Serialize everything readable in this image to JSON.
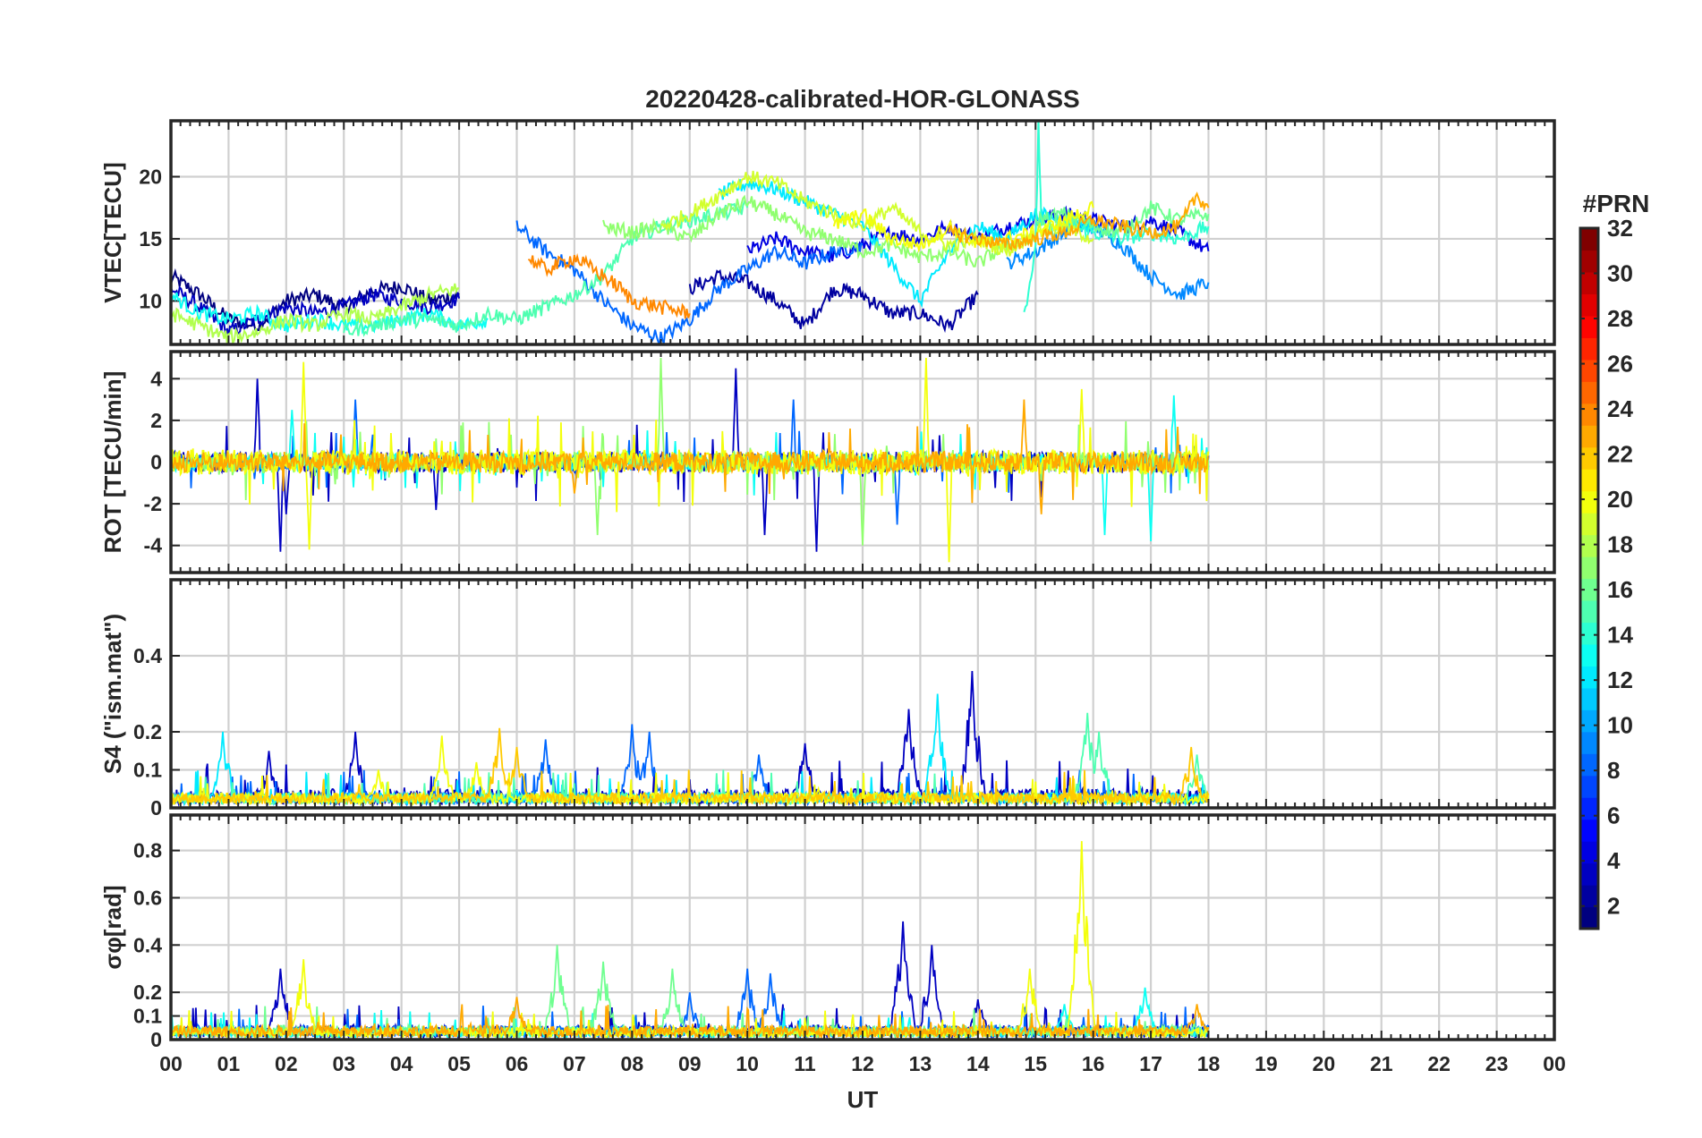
{
  "chart_data": {
    "type": "line",
    "title": "20220428-calibrated-HOR-GLONASS",
    "xlabel": "UT",
    "x_ticks": [
      "00",
      "01",
      "02",
      "03",
      "04",
      "05",
      "06",
      "07",
      "08",
      "09",
      "10",
      "11",
      "12",
      "13",
      "14",
      "15",
      "16",
      "17",
      "18",
      "19",
      "20",
      "21",
      "22",
      "23",
      "00"
    ],
    "xlim_hours": [
      0,
      24
    ],
    "grid": true,
    "panels": [
      {
        "id": "vtec",
        "ylabel": "VTEC[TECU]",
        "ylim": [
          6.5,
          24.5
        ],
        "yticks": [
          10,
          15,
          20
        ],
        "ytick_labels": [
          "10",
          "15",
          "20"
        ],
        "series": [
          {
            "prn": 1,
            "x": [
              0.0,
              0.5,
              1.0,
              1.5,
              2.0,
              2.5,
              3.0,
              3.5,
              4.0,
              4.5,
              5.0
            ],
            "y": [
              12.0,
              10.5,
              8.5,
              8.0,
              10.0,
              10.5,
              9.5,
              10.8,
              11.2,
              10.0,
              10.5
            ]
          },
          {
            "prn": 3,
            "x": [
              0.0,
              0.5,
              1.0,
              1.5,
              2.0,
              2.5,
              3.0,
              3.5,
              4.0,
              4.5,
              5.0
            ],
            "y": [
              11.0,
              9.5,
              7.5,
              8.5,
              9.5,
              9.0,
              9.5,
              10.5,
              10.0,
              9.5,
              10.2
            ]
          },
          {
            "prn": 2,
            "x": [
              9.0,
              9.5,
              10.0,
              10.5,
              11.0,
              11.5,
              12.0,
              12.5,
              13.0,
              13.5,
              14.0
            ],
            "y": [
              11.0,
              12.0,
              11.5,
              10.0,
              8.0,
              11.0,
              10.5,
              9.0,
              9.0,
              8.0,
              10.5
            ]
          },
          {
            "prn": 4,
            "x": [
              10.0,
              10.5,
              11.0,
              11.5,
              12.0,
              12.5,
              13.0,
              13.5,
              14.0,
              14.5,
              15.0,
              15.5,
              16.0,
              16.5,
              17.0,
              17.5,
              18.0
            ],
            "y": [
              14.0,
              15.0,
              14.0,
              13.5,
              14.5,
              15.5,
              15.0,
              16.0,
              15.0,
              16.0,
              16.5,
              17.0,
              16.5,
              16.0,
              16.5,
              15.5,
              14.0
            ]
          },
          {
            "prn": 8,
            "x": [
              6.0,
              6.5,
              7.0,
              7.5,
              8.0,
              8.5,
              9.0,
              9.5,
              10.0,
              10.5,
              11.0,
              11.5,
              12.0
            ],
            "y": [
              16.0,
              14.0,
              12.5,
              10.0,
              8.0,
              7.0,
              8.5,
              11.0,
              12.5,
              14.0,
              13.0,
              14.0,
              14.5
            ]
          },
          {
            "prn": 9,
            "x": [
              14.5,
              15.0,
              15.5,
              16.0,
              16.5,
              17.0,
              17.5,
              18.0
            ],
            "y": [
              13.0,
              14.0,
              15.5,
              16.0,
              14.5,
              12.0,
              10.5,
              11.5
            ]
          },
          {
            "prn": 12,
            "x": [
              9.5,
              10.0,
              10.5,
              11.0,
              11.5,
              12.0,
              12.5,
              13.0,
              13.5,
              14.0,
              14.5,
              15.0,
              15.5,
              16.0
            ],
            "y": [
              18.5,
              19.5,
              19.0,
              18.0,
              17.0,
              16.0,
              13.0,
              10.0,
              14.0,
              16.0,
              15.0,
              17.0,
              16.5,
              16.0
            ]
          },
          {
            "prn": 13,
            "x": [
              0.0,
              0.5,
              1.0,
              1.5,
              2.0,
              2.5,
              3.0,
              3.5,
              4.0,
              4.5,
              5.0,
              5.5
            ],
            "y": [
              10.5,
              9.0,
              8.5,
              9.0,
              8.0,
              8.5,
              8.0,
              8.0,
              8.5,
              9.0,
              8.0,
              8.5
            ]
          },
          {
            "prn": 14,
            "x": [
              14.8,
              15.0,
              15.05,
              15.1,
              15.2,
              15.5,
              16.0,
              16.5,
              17.0,
              17.5,
              18.0
            ],
            "y": [
              9.0,
              14.0,
              24.5,
              16.0,
              15.5,
              16.0,
              15.5,
              15.0,
              15.5,
              15.0,
              16.0
            ]
          },
          {
            "prn": 15,
            "x": [
              3.0,
              3.5,
              4.0,
              4.5,
              5.0,
              5.5,
              6.0,
              6.5,
              7.0,
              7.5,
              8.0,
              8.5,
              9.0,
              9.5,
              10.0
            ],
            "y": [
              7.5,
              8.0,
              8.5,
              8.5,
              8.0,
              9.0,
              8.5,
              9.5,
              10.5,
              12.0,
              15.0,
              16.0,
              16.5,
              17.0,
              17.5
            ]
          },
          {
            "prn": 16,
            "x": [
              15.0,
              15.5,
              16.0,
              16.5,
              17.0,
              17.5,
              18.0
            ],
            "y": [
              16.5,
              17.0,
              16.0,
              15.5,
              17.5,
              16.5,
              17.0
            ]
          },
          {
            "prn": 17,
            "x": [
              7.5,
              8.0,
              8.5,
              9.0,
              9.5,
              10.0,
              10.5,
              11.0,
              11.5,
              12.0,
              12.5,
              13.0,
              13.5,
              14.0,
              14.5,
              15.0
            ],
            "y": [
              16.0,
              15.5,
              16.0,
              15.0,
              17.0,
              18.0,
              17.0,
              15.5,
              15.0,
              14.0,
              14.5,
              13.5,
              14.0,
              13.0,
              14.5,
              15.0
            ]
          },
          {
            "prn": 18,
            "x": [
              0.0,
              0.5,
              1.0,
              1.5,
              2.0,
              2.5,
              3.0,
              3.5,
              4.0,
              4.5,
              5.0
            ],
            "y": [
              9.0,
              8.0,
              7.0,
              7.5,
              8.5,
              8.0,
              9.0,
              8.5,
              9.5,
              10.5,
              11.0
            ]
          },
          {
            "prn": 19,
            "x": [
              8.5,
              9.0,
              9.5,
              10.0,
              10.5,
              11.0,
              11.5,
              12.0,
              12.5,
              13.0,
              13.5,
              14.0,
              14.5,
              15.0,
              15.5,
              16.0
            ],
            "y": [
              16.0,
              17.0,
              18.5,
              20.0,
              19.5,
              18.0,
              17.0,
              16.0,
              17.5,
              15.5,
              14.5,
              15.0,
              14.0,
              15.5,
              16.0,
              15.0
            ]
          },
          {
            "prn": 20,
            "x": [
              11.5,
              12.0,
              12.5,
              13.0,
              13.5,
              14.0,
              14.5,
              15.0,
              15.5,
              16.0
            ],
            "y": [
              16.0,
              17.0,
              15.0,
              14.5,
              16.0,
              14.5,
              15.0,
              15.5,
              16.5,
              17.5
            ]
          },
          {
            "prn": 23,
            "x": [
              13.5,
              14.0,
              14.5,
              15.0,
              15.5,
              16.0,
              16.5,
              17.0,
              17.5,
              17.8,
              18.0
            ],
            "y": [
              15.5,
              15.0,
              14.5,
              15.0,
              15.5,
              16.5,
              16.0,
              15.5,
              16.0,
              18.5,
              17.5
            ]
          },
          {
            "prn": 24,
            "x": [
              6.2,
              6.5,
              7.0,
              7.5,
              7.8,
              8.0,
              8.5,
              9.0
            ],
            "y": [
              13.5,
              12.5,
              13.5,
              12.0,
              11.0,
              10.0,
              9.5,
              9.0
            ]
          }
        ]
      },
      {
        "id": "rot",
        "ylabel": "ROT [TECU/min]",
        "ylim": [
          -5.3,
          5.3
        ],
        "yticks": [
          -4,
          -2,
          0,
          2,
          4
        ],
        "ytick_labels": [
          "-4",
          "-2",
          "0",
          "2",
          "4"
        ],
        "noise_series": [
          {
            "prn": 3,
            "start": 0.0,
            "end": 18.0,
            "amp": 0.5,
            "spikes": [
              [
                1.5,
                4.0
              ],
              [
                1.9,
                -4.3
              ],
              [
                9.8,
                4.5
              ],
              [
                10.3,
                -3.5
              ],
              [
                11.2,
                -4.3
              ],
              [
                2.0,
                -2.5
              ],
              [
                4.6,
                -2.3
              ]
            ]
          },
          {
            "prn": 8,
            "start": 0.0,
            "end": 18.0,
            "amp": 0.4,
            "spikes": [
              [
                3.2,
                3.0
              ],
              [
                10.8,
                3.0
              ],
              [
                12.6,
                -3.0
              ]
            ]
          },
          {
            "prn": 13,
            "start": 0.0,
            "end": 18.0,
            "amp": 0.4,
            "spikes": [
              [
                2.1,
                2.5
              ],
              [
                16.2,
                -3.5
              ],
              [
                17.0,
                -3.8
              ],
              [
                17.4,
                3.2
              ]
            ]
          },
          {
            "prn": 17,
            "start": 0.0,
            "end": 18.0,
            "amp": 0.5,
            "spikes": [
              [
                8.5,
                5.0
              ],
              [
                7.4,
                -3.5
              ],
              [
                12.0,
                -4.0
              ]
            ]
          },
          {
            "prn": 20,
            "start": 0.0,
            "end": 18.0,
            "amp": 0.6,
            "spikes": [
              [
                2.3,
                4.8
              ],
              [
                2.4,
                -4.2
              ],
              [
                13.1,
                5.0
              ],
              [
                13.5,
                -4.8
              ],
              [
                15.8,
                3.5
              ]
            ]
          },
          {
            "prn": 23,
            "start": 0.0,
            "end": 18.0,
            "amp": 0.5,
            "spikes": [
              [
                14.8,
                3.0
              ],
              [
                15.1,
                -2.5
              ],
              [
                7.0,
                -1.5
              ]
            ]
          }
        ]
      },
      {
        "id": "s4",
        "ylabel": "S4 (\"ism.mat\")",
        "ylim": [
          0,
          0.6
        ],
        "yticks": [
          0,
          0.1,
          0.2,
          0.4
        ],
        "ytick_labels": [
          "0",
          "0.1",
          "0.2",
          "0.4"
        ],
        "noise_series": [
          {
            "prn": 3,
            "start": 0.0,
            "end": 18.0,
            "amp": 0.04,
            "spikes": [
              [
                3.2,
                0.2
              ],
              [
                12.8,
                0.26
              ],
              [
                13.9,
                0.36
              ],
              [
                11.0,
                0.17
              ],
              [
                1.7,
                0.15
              ]
            ]
          },
          {
            "prn": 8,
            "start": 0.0,
            "end": 18.0,
            "amp": 0.03,
            "spikes": [
              [
                6.5,
                0.18
              ],
              [
                8.0,
                0.22
              ],
              [
                8.3,
                0.2
              ],
              [
                10.2,
                0.14
              ]
            ]
          },
          {
            "prn": 12,
            "start": 0.0,
            "end": 18.0,
            "amp": 0.03,
            "spikes": [
              [
                0.9,
                0.2
              ],
              [
                13.3,
                0.3
              ]
            ]
          },
          {
            "prn": 15,
            "start": 0.0,
            "end": 18.0,
            "amp": 0.03,
            "spikes": [
              [
                15.9,
                0.25
              ],
              [
                16.1,
                0.2
              ],
              [
                17.8,
                0.14
              ]
            ]
          },
          {
            "prn": 20,
            "start": 0.0,
            "end": 18.0,
            "amp": 0.03,
            "spikes": [
              [
                4.7,
                0.19
              ],
              [
                5.3,
                0.12
              ],
              [
                3.6,
                0.1
              ]
            ]
          },
          {
            "prn": 22,
            "start": 0.0,
            "end": 18.0,
            "amp": 0.03,
            "spikes": [
              [
                5.7,
                0.21
              ],
              [
                6.0,
                0.16
              ],
              [
                17.7,
                0.16
              ]
            ]
          }
        ]
      },
      {
        "id": "sigma_phi",
        "ylabel": "σφ[rad]",
        "ylim": [
          0,
          0.95
        ],
        "yticks": [
          0,
          0.1,
          0.2,
          0.4,
          0.6,
          0.8
        ],
        "ytick_labels": [
          "0",
          "0.1",
          "0.2",
          "0.4",
          "0.6",
          "0.8"
        ],
        "noise_series": [
          {
            "prn": 3,
            "start": 0.0,
            "end": 18.0,
            "amp": 0.05,
            "spikes": [
              [
                1.9,
                0.3
              ],
              [
                12.7,
                0.5
              ],
              [
                13.2,
                0.4
              ],
              [
                14.0,
                0.17
              ]
            ]
          },
          {
            "prn": 8,
            "start": 0.0,
            "end": 18.0,
            "amp": 0.05,
            "spikes": [
              [
                10.0,
                0.3
              ],
              [
                10.4,
                0.28
              ],
              [
                9.0,
                0.2
              ]
            ]
          },
          {
            "prn": 13,
            "start": 0.0,
            "end": 18.0,
            "amp": 0.04,
            "spikes": [
              [
                16.9,
                0.22
              ],
              [
                15.5,
                0.15
              ]
            ]
          },
          {
            "prn": 16,
            "start": 0.0,
            "end": 18.0,
            "amp": 0.05,
            "spikes": [
              [
                6.7,
                0.4
              ],
              [
                7.5,
                0.33
              ],
              [
                8.7,
                0.3
              ]
            ]
          },
          {
            "prn": 20,
            "start": 0.0,
            "end": 18.0,
            "amp": 0.04,
            "spikes": [
              [
                2.3,
                0.34
              ],
              [
                15.8,
                0.84
              ],
              [
                14.9,
                0.3
              ]
            ]
          },
          {
            "prn": 23,
            "start": 0.0,
            "end": 18.0,
            "amp": 0.05,
            "spikes": [
              [
                6.0,
                0.18
              ],
              [
                17.8,
                0.15
              ]
            ]
          }
        ]
      }
    ],
    "colorbar": {
      "label": "#PRN",
      "range": [
        1,
        32
      ],
      "ticks": [
        2,
        4,
        6,
        8,
        10,
        12,
        14,
        16,
        18,
        20,
        22,
        24,
        26,
        28,
        30,
        32
      ],
      "tick_labels": [
        "2",
        "4",
        "6",
        "8",
        "10",
        "12",
        "14",
        "16",
        "18",
        "20",
        "22",
        "24",
        "26",
        "28",
        "30",
        "32"
      ],
      "colormap": "jet"
    }
  }
}
